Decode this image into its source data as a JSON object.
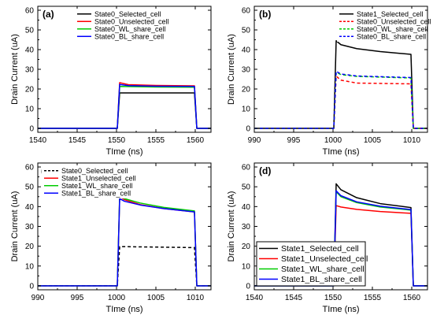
{
  "chart_data": [
    {
      "type": "line",
      "panel_label": "(a)",
      "xlabel": "TIme (ns)",
      "ylabel": "Drain Current (uA)",
      "xlim": [
        1540,
        1562
      ],
      "ylim": [
        -2,
        62
      ],
      "xticks": [
        1540,
        1545,
        1550,
        1555,
        1560
      ],
      "yticks": [
        0,
        10,
        20,
        30,
        40,
        50,
        60
      ],
      "legend_position": "top-right",
      "series": [
        {
          "name": "State0_Selected_cell",
          "color": "#000000",
          "dash": "solid",
          "points": [
            [
              1540,
              0
            ],
            [
              1550.1,
              0
            ],
            [
              1550.4,
              18
            ],
            [
              1559.9,
              18
            ],
            [
              1560.2,
              0
            ],
            [
              1562,
              0
            ]
          ]
        },
        {
          "name": "State0_Unselected_cell",
          "color": "#ff0000",
          "dash": "solid",
          "points": [
            [
              1540,
              0
            ],
            [
              1550.1,
              0
            ],
            [
              1550.4,
              23.2
            ],
            [
              1551.5,
              22.2
            ],
            [
              1555,
              21.8
            ],
            [
              1559.9,
              21.6
            ],
            [
              1560.2,
              0
            ],
            [
              1562,
              0
            ]
          ]
        },
        {
          "name": "State0_WL_share_cell",
          "color": "#00cc00",
          "dash": "solid",
          "points": [
            [
              1540,
              0
            ],
            [
              1550.1,
              0
            ],
            [
              1550.4,
              21.3
            ],
            [
              1555,
              21.0
            ],
            [
              1559.9,
              20.9
            ],
            [
              1560.2,
              0
            ],
            [
              1562,
              0
            ]
          ]
        },
        {
          "name": "State0_BL_share_cell",
          "color": "#0000ff",
          "dash": "solid",
          "points": [
            [
              1540,
              0
            ],
            [
              1550.1,
              0
            ],
            [
              1550.4,
              22.3
            ],
            [
              1551.5,
              21.7
            ],
            [
              1555,
              21.4
            ],
            [
              1559.9,
              21.3
            ],
            [
              1560.2,
              0
            ],
            [
              1562,
              0
            ]
          ]
        }
      ]
    },
    {
      "type": "line",
      "panel_label": "(b)",
      "xlabel": "TIme (ns)",
      "ylabel": "Drain Current (uA)",
      "xlim": [
        990,
        1012
      ],
      "ylim": [
        -2,
        62
      ],
      "xticks": [
        990,
        995,
        1000,
        1005,
        1010
      ],
      "yticks": [
        0,
        10,
        20,
        30,
        40,
        50,
        60
      ],
      "legend_position": "top-right",
      "series": [
        {
          "name": "State1_Selected_cell",
          "color": "#000000",
          "dash": "solid",
          "points": [
            [
              990,
              0
            ],
            [
              1000.1,
              0
            ],
            [
              1000.4,
              44.5
            ],
            [
              1001,
              42.5
            ],
            [
              1003,
              40.5
            ],
            [
              1006,
              39
            ],
            [
              1009.9,
              37.6
            ],
            [
              1010.2,
              0
            ],
            [
              1012,
              0
            ]
          ]
        },
        {
          "name": "State0_Unselected_cell",
          "color": "#ff0000",
          "dash": "dashed",
          "points": [
            [
              990,
              0
            ],
            [
              1000.1,
              0
            ],
            [
              1000.4,
              26.5
            ],
            [
              1001,
              24.5
            ],
            [
              1003,
              23
            ],
            [
              1009.9,
              22.6
            ],
            [
              1010.2,
              0
            ],
            [
              1012,
              0
            ]
          ]
        },
        {
          "name": "State0_WL_share_cell",
          "color": "#00cc00",
          "dash": "dashed",
          "points": [
            [
              990,
              0
            ],
            [
              1000.1,
              0
            ],
            [
              1000.4,
              28.5
            ],
            [
              1001,
              27.3
            ],
            [
              1003,
              26.4
            ],
            [
              1009.9,
              25.6
            ],
            [
              1010.2,
              0
            ],
            [
              1012,
              0
            ]
          ]
        },
        {
          "name": "State0_BL_share_cell",
          "color": "#0000ff",
          "dash": "dashed",
          "points": [
            [
              990,
              0
            ],
            [
              1000.1,
              0
            ],
            [
              1000.4,
              29
            ],
            [
              1001,
              27.6
            ],
            [
              1003,
              26.6
            ],
            [
              1009.9,
              25.8
            ],
            [
              1010.2,
              0
            ],
            [
              1012,
              0
            ]
          ]
        }
      ]
    },
    {
      "type": "line",
      "panel_label": "(c)",
      "xlabel": "TIme (ns)",
      "ylabel": "Drain Current (uA)",
      "xlim": [
        990,
        1012
      ],
      "ylim": [
        -2,
        62
      ],
      "xticks": [
        990,
        995,
        1000,
        1005,
        1010
      ],
      "yticks": [
        0,
        10,
        20,
        30,
        40,
        50,
        60
      ],
      "legend_position": "top-left",
      "series": [
        {
          "name": "State0_Selected_cell",
          "color": "#000000",
          "dash": "dashed",
          "points": [
            [
              990,
              0
            ],
            [
              1000.1,
              0
            ],
            [
              1000.4,
              19.8
            ],
            [
              1009.9,
              19.3
            ],
            [
              1010.2,
              0
            ],
            [
              1012,
              0
            ]
          ]
        },
        {
          "name": "State1_Unselected_cell",
          "color": "#ff0000",
          "dash": "solid",
          "points": [
            [
              990,
              0
            ],
            [
              1000.1,
              0
            ],
            [
              1000.4,
              45
            ],
            [
              1001,
              43.5
            ],
            [
              1003,
              41
            ],
            [
              1006,
              39
            ],
            [
              1009.9,
              37.3
            ],
            [
              1010.2,
              0
            ],
            [
              1012,
              0
            ]
          ]
        },
        {
          "name": "State1_WL_share_cell",
          "color": "#00cc00",
          "dash": "solid",
          "points": [
            [
              990,
              0
            ],
            [
              1000.1,
              0
            ],
            [
              1000.4,
              45.5
            ],
            [
              1001,
              44
            ],
            [
              1003,
              41.8
            ],
            [
              1006,
              39.6
            ],
            [
              1009.9,
              37.8
            ],
            [
              1010.2,
              0
            ],
            [
              1012,
              0
            ]
          ]
        },
        {
          "name": "State1_BL_share_cell",
          "color": "#0000ff",
          "dash": "solid",
          "points": [
            [
              990,
              0
            ],
            [
              1000.1,
              0
            ],
            [
              1000.4,
              44
            ],
            [
              1001,
              42.7
            ],
            [
              1003,
              40.8
            ],
            [
              1006,
              39
            ],
            [
              1009.9,
              37.3
            ],
            [
              1010.2,
              0
            ],
            [
              1012,
              0
            ]
          ]
        }
      ]
    },
    {
      "type": "line",
      "panel_label": "(d)",
      "xlabel": "TIme (ns)",
      "ylabel": "Drain Current (uA)",
      "xlim": [
        1540,
        1562
      ],
      "ylim": [
        -2,
        62
      ],
      "xticks": [
        1540,
        1545,
        1550,
        1555,
        1560
      ],
      "yticks": [
        0,
        10,
        20,
        30,
        40,
        50,
        60
      ],
      "legend_position": "bottom-left",
      "series": [
        {
          "name": "State1_Selected_cell",
          "color": "#000000",
          "dash": "solid",
          "points": [
            [
              1540,
              0
            ],
            [
              1550.1,
              0
            ],
            [
              1550.4,
              51.5
            ],
            [
              1551,
              48.5
            ],
            [
              1553,
              44.5
            ],
            [
              1556,
              41.5
            ],
            [
              1559.9,
              39.5
            ],
            [
              1560.2,
              0
            ],
            [
              1562,
              0
            ]
          ]
        },
        {
          "name": "State1_Unselected_cell",
          "color": "#ff0000",
          "dash": "solid",
          "points": [
            [
              1540,
              0
            ],
            [
              1550.1,
              0
            ],
            [
              1550.4,
              40.5
            ],
            [
              1551,
              39.8
            ],
            [
              1553,
              38.6
            ],
            [
              1556,
              37.5
            ],
            [
              1559.9,
              36.6
            ],
            [
              1560.2,
              0
            ],
            [
              1562,
              0
            ]
          ]
        },
        {
          "name": "State1_WL_share_cell",
          "color": "#00cc00",
          "dash": "solid",
          "points": [
            [
              1540,
              0
            ],
            [
              1550.1,
              0
            ],
            [
              1550.4,
              47.5
            ],
            [
              1551,
              45
            ],
            [
              1553,
              42
            ],
            [
              1556,
              39.8
            ],
            [
              1559.9,
              38.2
            ],
            [
              1560.2,
              0
            ],
            [
              1562,
              0
            ]
          ]
        },
        {
          "name": "State1_BL_share_cell",
          "color": "#0000ff",
          "dash": "solid",
          "points": [
            [
              1540,
              0
            ],
            [
              1550.1,
              0
            ],
            [
              1550.4,
              48
            ],
            [
              1551,
              45.5
            ],
            [
              1553,
              42.4
            ],
            [
              1556,
              40.2
            ],
            [
              1559.9,
              38.5
            ],
            [
              1560.2,
              0
            ],
            [
              1562,
              0
            ]
          ]
        }
      ]
    }
  ]
}
